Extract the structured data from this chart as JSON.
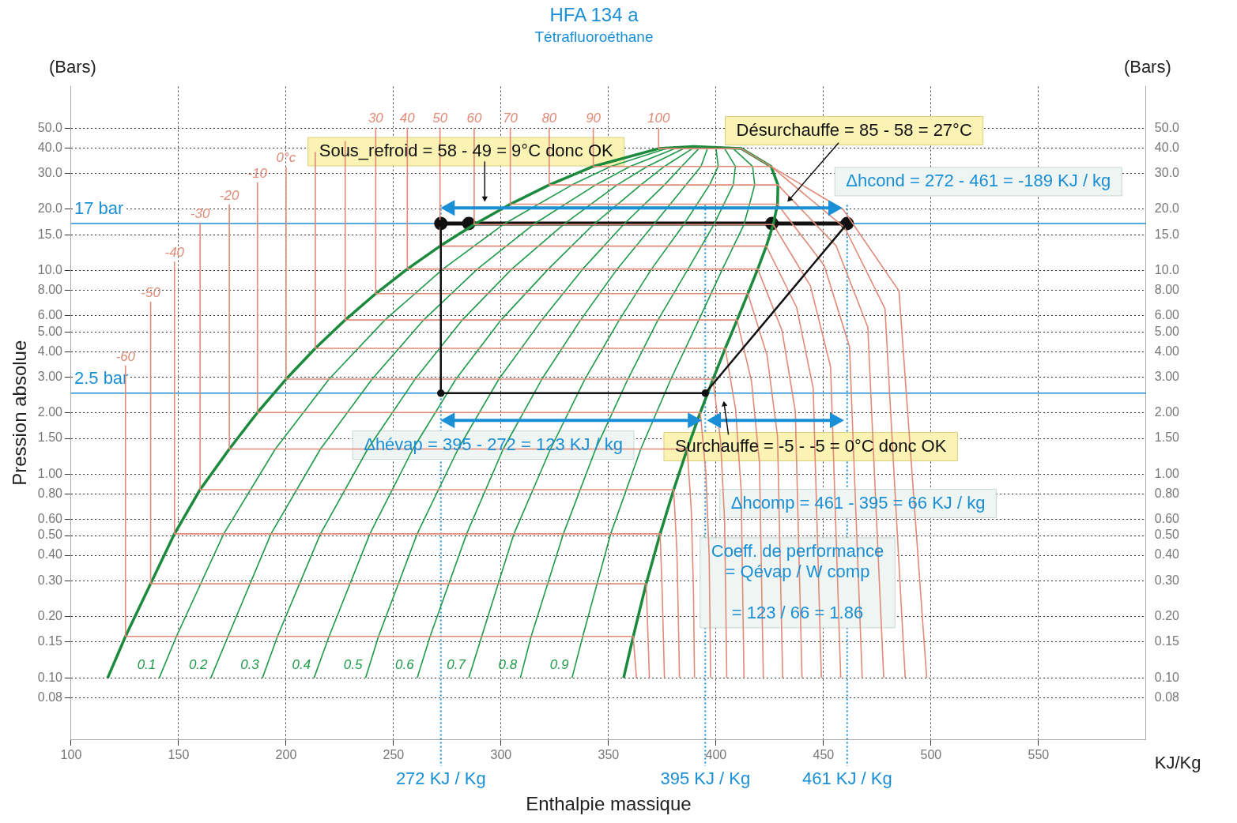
{
  "chart_data": {
    "type": "line",
    "title": "HFA 134 a",
    "subtitle": "Tétrafluoroéthane",
    "xlabel": "Enthalpie massique",
    "ylabel": "Pression absolue",
    "log": "y",
    "grid": true,
    "legend": false,
    "marker": "none",
    "line_style": "solid",
    "xlim": [
      100,
      600
    ],
    "xticks": [
      100,
      150,
      200,
      250,
      300,
      350,
      400,
      450,
      500,
      550
    ],
    "ylim": [
      0.05,
      80
    ],
    "yticks": [
      {
        "value": 0.08,
        "label": "0.08"
      },
      {
        "value": 0.1,
        "label": "0.10"
      },
      {
        "value": 0.15,
        "label": "0.15"
      },
      {
        "value": 0.2,
        "label": "0.20"
      },
      {
        "value": 0.3,
        "label": "0.30"
      },
      {
        "value": 0.4,
        "label": "0.40"
      },
      {
        "value": 0.5,
        "label": "0.50"
      },
      {
        "value": 0.6,
        "label": "0.60"
      },
      {
        "value": 0.8,
        "label": "0.80"
      },
      {
        "value": 1,
        "label": "1.00"
      },
      {
        "value": 1.5,
        "label": "1.50"
      },
      {
        "value": 2,
        "label": "2.00"
      },
      {
        "value": 3,
        "label": "3.00"
      },
      {
        "value": 4,
        "label": "4.00"
      },
      {
        "value": 5,
        "label": "5.00"
      },
      {
        "value": 6,
        "label": "6.00"
      },
      {
        "value": 8,
        "label": "8.00"
      },
      {
        "value": 10,
        "label": "10.0"
      },
      {
        "value": 15,
        "label": "15.0"
      },
      {
        "value": 20,
        "label": "20.0"
      },
      {
        "value": 30,
        "label": "30.0"
      },
      {
        "value": 40,
        "label": "40.0"
      },
      {
        "value": 50,
        "label": "50.0"
      }
    ],
    "series": [
      {
        "color": "#1b8a3c",
        "x": [
          117,
          125.3,
          137,
          148.1,
          160,
          173.6,
          186.7,
          200,
          213.6,
          227.5,
          241.7,
          256.4,
          271.6,
          287.5,
          304.3,
          322.4,
          342.9,
          373.3,
          389.6,
          411.7,
          425.6,
          428.8,
          428.6,
          426.6,
          423.4,
          419.4,
          414.8,
          409.8,
          404.3,
          398.6,
          392.7,
          386.6,
          380.3,
          374,
          367.5,
          361.5,
          357
        ],
        "values": [
          0.1,
          0.16,
          0.29,
          0.51,
          0.84,
          1.33,
          2.01,
          2.93,
          4.15,
          5.72,
          7.7,
          10.17,
          13.18,
          16.82,
          21.17,
          26.33,
          32.44,
          39.7,
          40.6,
          39.7,
          32.44,
          26.33,
          21.17,
          16.82,
          13.18,
          10.17,
          7.7,
          5.72,
          4.15,
          2.93,
          2.01,
          1.33,
          0.84,
          0.51,
          0.29,
          0.16,
          0.1
        ]
      },
      {
        "name": "0.1",
        "color": "#1f9a48",
        "x": [
          141,
          149,
          171,
          195,
          220,
          246,
          273,
          301,
          333,
          351,
          377
        ],
        "values": [
          0.1,
          0.16,
          0.51,
          1.33,
          2.93,
          5.72,
          10.17,
          16.82,
          26.33,
          32.44,
          39.7
        ]
      },
      {
        "name": "0.2",
        "color": "#1f9a48",
        "x": [
          165,
          173,
          193,
          216,
          240,
          264,
          289,
          315,
          344,
          360,
          381
        ],
        "values": [
          0.1,
          0.16,
          0.51,
          1.33,
          2.93,
          5.72,
          10.17,
          16.82,
          26.33,
          32.44,
          39.7
        ]
      },
      {
        "name": "0.3",
        "color": "#1f9a48",
        "x": [
          189,
          196,
          216,
          238,
          260,
          282,
          305,
          329,
          354,
          368,
          385
        ],
        "values": [
          0.1,
          0.16,
          0.51,
          1.33,
          2.93,
          5.72,
          10.17,
          16.82,
          26.33,
          32.44,
          39.7
        ]
      },
      {
        "name": "0.4",
        "color": "#1f9a48",
        "x": [
          213,
          220,
          239,
          259,
          279,
          300,
          322,
          343,
          365,
          376,
          389
        ],
        "values": [
          0.1,
          0.16,
          0.51,
          1.33,
          2.93,
          5.72,
          10.17,
          16.82,
          26.33,
          32.44,
          39.7
        ]
      },
      {
        "name": "0.5",
        "color": "#1f9a48",
        "x": [
          237,
          243,
          261,
          280,
          299,
          319,
          338,
          357,
          376,
          384,
          392
        ],
        "values": [
          0.1,
          0.16,
          0.51,
          1.33,
          2.93,
          5.72,
          10.17,
          16.82,
          26.33,
          32.44,
          39.7
        ]
      },
      {
        "name": "0.6",
        "color": "#1f9a48",
        "x": [
          261,
          267,
          284,
          301,
          319,
          337,
          354,
          371,
          386,
          393,
          396
        ],
        "values": [
          0.1,
          0.16,
          0.51,
          1.33,
          2.93,
          5.72,
          10.17,
          16.82,
          26.33,
          32.44,
          39.7
        ]
      },
      {
        "name": "0.7",
        "color": "#1f9a48",
        "x": [
          285,
          291,
          306,
          323,
          339,
          355,
          370,
          385,
          397,
          401,
          400
        ],
        "values": [
          0.1,
          0.16,
          0.51,
          1.33,
          2.93,
          5.72,
          10.17,
          16.82,
          26.33,
          32.44,
          39.7
        ]
      },
      {
        "name": "0.8",
        "color": "#1f9a48",
        "x": [
          309,
          314,
          329,
          344,
          359,
          373,
          387,
          399,
          408,
          409,
          404
        ],
        "values": [
          0.1,
          0.16,
          0.51,
          1.33,
          2.93,
          5.72,
          10.17,
          16.82,
          26.33,
          32.44,
          39.7
        ]
      },
      {
        "name": "0.9",
        "color": "#1f9a48",
        "x": [
          333,
          338,
          351,
          365,
          379,
          392,
          403,
          413,
          418,
          417,
          408
        ],
        "values": [
          0.1,
          0.16,
          0.51,
          1.33,
          2.93,
          5.72,
          10.17,
          16.82,
          26.33,
          32.44,
          39.7
        ]
      },
      {
        "name": "-60",
        "color": "#e08a78",
        "x": [
          125.3,
          125.3,
          361.5,
          363
        ],
        "values": [
          3.4,
          0.16,
          0.16,
          0.1
        ]
      },
      {
        "name": "-50",
        "color": "#e08a78",
        "x": [
          137,
          137,
          367.5,
          368.5,
          369
        ],
        "values": [
          7,
          0.29,
          0.29,
          0.145,
          0.1
        ]
      },
      {
        "name": "-40",
        "color": "#e08a78",
        "x": [
          148.1,
          148.1,
          374,
          375,
          376
        ],
        "values": [
          11,
          0.51,
          0.51,
          0.255,
          0.1
        ]
      },
      {
        "name": "-30",
        "color": "#e08a78",
        "x": [
          160,
          160,
          380.3,
          381.8,
          382.6,
          383
        ],
        "values": [
          17,
          0.84,
          0.84,
          0.42,
          0.168,
          0.1
        ]
      },
      {
        "name": "-20",
        "color": "#e08a78",
        "x": [
          173.6,
          173.6,
          386.6,
          388.5,
          389.5,
          390
        ],
        "values": [
          21,
          1.33,
          1.33,
          0.665,
          0.266,
          0.1
        ]
      },
      {
        "name": "-10",
        "color": "#e08a78",
        "x": [
          186.7,
          186.7,
          392.7,
          395.3,
          396.8,
          397.5
        ],
        "values": [
          27,
          2.01,
          2.01,
          1,
          0.4,
          0.1
        ]
      },
      {
        "name": "0°c",
        "color": "#e08a78",
        "x": [
          200,
          200,
          398.6,
          402.1,
          404,
          405
        ],
        "values": [
          32,
          2.93,
          2.93,
          1.46,
          0.59,
          0.1
        ]
      },
      {
        "color": "#e08a78",
        "x": [
          213.6,
          213.6,
          404.3,
          409.1,
          411.7,
          413
        ],
        "values": [
          38,
          4.15,
          4.15,
          2.08,
          0.83,
          0.1
        ]
      },
      {
        "color": "#e08a78",
        "x": [
          227.5,
          227.5,
          409.8,
          416.5,
          420.2,
          422
        ],
        "values": [
          43,
          5.72,
          5.72,
          2.86,
          1.14,
          0.1
        ]
      },
      {
        "name": "30",
        "color": "#e08a78",
        "x": [
          241.7,
          241.7,
          414.8,
          423.7,
          428.6,
          431
        ],
        "values": [
          50,
          7.7,
          7.7,
          3.85,
          1.54,
          0.1
        ]
      },
      {
        "name": "40",
        "color": "#e08a78",
        "x": [
          256.4,
          256.4,
          419.4,
          430.7,
          436.9,
          440
        ],
        "values": [
          50,
          10.17,
          10.17,
          5.08,
          2.03,
          0.1
        ]
      },
      {
        "name": "50",
        "color": "#e08a78",
        "x": [
          271.6,
          271.6,
          423.4,
          437.5,
          445.2,
          449
        ],
        "values": [
          50,
          13.18,
          13.18,
          6.59,
          2.64,
          0.1
        ]
      },
      {
        "name": "60",
        "color": "#e08a78",
        "x": [
          287.5,
          287.5,
          426.6,
          443.9,
          453.3,
          458
        ],
        "values": [
          50,
          16.82,
          16.82,
          8.41,
          3.36,
          0.1
        ]
      },
      {
        "name": "70",
        "color": "#e08a78",
        "x": [
          304.3,
          304.3,
          428.6,
          450.3,
          462.1,
          468
        ],
        "values": [
          50,
          21.17,
          21.17,
          10.6,
          4.23,
          0.1
        ]
      },
      {
        "name": "80",
        "color": "#e08a78",
        "x": [
          322.4,
          322.4,
          428.8,
          455.9,
          470.6,
          478
        ],
        "values": [
          50,
          26.33,
          26.33,
          13.2,
          5.27,
          0.1
        ]
      },
      {
        "name": "90",
        "color": "#e08a78",
        "x": [
          342.9,
          342.9,
          425.6,
          459.9,
          478.6,
          488
        ],
        "values": [
          50,
          32.44,
          32.44,
          16.2,
          6.49,
          0.1
        ]
      },
      {
        "name": "100",
        "color": "#e08a78",
        "x": [
          373.3,
          373.3,
          411.7,
          459.2,
          485.1,
          498
        ],
        "values": [
          50,
          39.7,
          39.7,
          19.9,
          7.94,
          0.1
        ]
      },
      {
        "color": "#111111",
        "marker": "circle",
        "x": [
          272,
          272,
          395,
          461
        ],
        "values": [
          17,
          2.5,
          2.5,
          17
        ]
      },
      {
        "color": "#111111",
        "marker": "circle",
        "x": [
          272,
          285,
          426,
          461
        ],
        "values": [
          17,
          17,
          17,
          17
        ]
      }
    ],
    "ref_lines": [
      {
        "axis": "y",
        "value": 17,
        "label": "17 bar",
        "color": "#1a8fd6",
        "line_style": "solid"
      },
      {
        "axis": "y",
        "value": 2.5,
        "label": "2.5 bar",
        "color": "#1a8fd6",
        "line_style": "solid"
      },
      {
        "axis": "x",
        "value": 272,
        "label": "272 KJ / Kg",
        "color": "#1a8fd6",
        "line_style": "dotted"
      },
      {
        "axis": "x",
        "value": 395,
        "label": "395 KJ / Kg",
        "color": "#1a8fd6",
        "line_style": "dotted"
      },
      {
        "axis": "x",
        "value": 461,
        "label": "461 KJ / Kg",
        "color": "#1a8fd6",
        "line_style": "dotted"
      }
    ],
    "annotations": [
      "Sous_refroid = 58 - 49 = 9°C donc OK",
      "Désurchauffe = 85 - 58 = 27°C",
      "Δhcond = 272 - 461 = -189 KJ / kg",
      "Δhévap = 395 - 272 = 123 KJ / kg",
      "Surchauffe = -5 - -5 = 0°C donc OK",
      "Δhcomp = 461 - 395 = 66 KJ / kg",
      "Coeff. de performance\n= Qévap / W comp\n\n= 123 / 66 = 1.86",
      "(Bars)",
      "(Bars)",
      "KJ/Kg"
    ]
  }
}
